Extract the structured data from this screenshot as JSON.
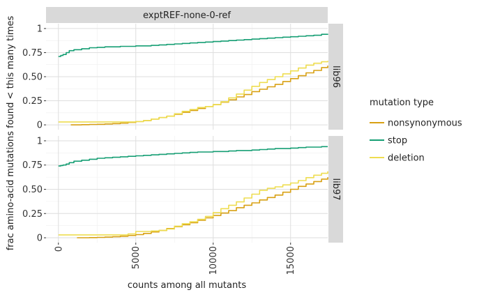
{
  "chart_data": {
    "type": "line",
    "facet_column_label": "exptREF-none-0-ref",
    "xlabel": "counts among all mutants",
    "ylabel": "frac amino-acid mutations found < this many times",
    "xlim": [
      -800,
      17400
    ],
    "ylim": [
      -0.05,
      1.05
    ],
    "x_ticks": [
      0,
      5000,
      10000,
      15000
    ],
    "x_tick_labels": [
      "0",
      "5000",
      "10000",
      "15000"
    ],
    "y_ticks": [
      0,
      0.25,
      0.5,
      0.75,
      1
    ],
    "y_tick_labels": [
      "0",
      "0.25",
      "0.50",
      "0.75",
      "1"
    ],
    "grid": true,
    "legend": {
      "title": "mutation type",
      "placement": "right",
      "entries": [
        "nonsynonymous",
        "stop",
        "deletion"
      ]
    },
    "colors": {
      "nonsynonymous": "#D8A013",
      "stop": "#159E73",
      "deletion": "#EEDD50",
      "strip_bg": "#D9D9D9",
      "grid": "#DEDEDE"
    },
    "panels": [
      {
        "row_label": "lib96",
        "series": [
          {
            "name": "stop",
            "x": [
              0,
              150,
              300,
              500,
              700,
              1000,
              1500,
              2000,
              2500,
              3000,
              3500,
              4000,
              4500,
              5000,
              5500,
              6000,
              6500,
              7000,
              7500,
              8000,
              8500,
              9000,
              9500,
              10000,
              10500,
              11000,
              11500,
              12000,
              12500,
              13000,
              13500,
              14000,
              14500,
              15000,
              15500,
              16000,
              16500,
              17000,
              17400
            ],
            "y": [
              0.71,
              0.72,
              0.73,
              0.75,
              0.77,
              0.78,
              0.79,
              0.8,
              0.805,
              0.81,
              0.81,
              0.815,
              0.815,
              0.82,
              0.82,
              0.825,
              0.83,
              0.835,
              0.84,
              0.845,
              0.85,
              0.855,
              0.86,
              0.865,
              0.87,
              0.875,
              0.88,
              0.885,
              0.89,
              0.895,
              0.9,
              0.905,
              0.91,
              0.915,
              0.92,
              0.925,
              0.93,
              0.94,
              0.945
            ]
          },
          {
            "name": "nonsynonymous",
            "x": [
              800,
              1500,
              2000,
              2500,
              3000,
              3500,
              4000,
              4500,
              5000,
              5500,
              6000,
              6500,
              7000,
              7500,
              8000,
              8500,
              9000,
              9500,
              10000,
              10500,
              11000,
              11500,
              12000,
              12500,
              13000,
              13500,
              14000,
              14500,
              15000,
              15500,
              16000,
              16500,
              17000,
              17400
            ],
            "y": [
              0.0,
              0.002,
              0.004,
              0.006,
              0.009,
              0.013,
              0.018,
              0.025,
              0.035,
              0.045,
              0.06,
              0.075,
              0.09,
              0.11,
              0.13,
              0.15,
              0.17,
              0.19,
              0.21,
              0.235,
              0.26,
              0.29,
              0.315,
              0.345,
              0.37,
              0.395,
              0.42,
              0.45,
              0.48,
              0.51,
              0.54,
              0.565,
              0.595,
              0.615
            ]
          },
          {
            "name": "deletion",
            "x": [
              0,
              1000,
              2000,
              3000,
              4000,
              4500,
              5000,
              5500,
              6000,
              6500,
              7000,
              7500,
              8000,
              8500,
              9000,
              9500,
              10000,
              10500,
              11000,
              11500,
              12000,
              12500,
              13000,
              13500,
              14000,
              14500,
              15000,
              15500,
              16000,
              16500,
              17000,
              17400
            ],
            "y": [
              0.03,
              0.03,
              0.03,
              0.03,
              0.03,
              0.03,
              0.035,
              0.045,
              0.06,
              0.075,
              0.09,
              0.115,
              0.14,
              0.16,
              0.18,
              0.19,
              0.21,
              0.24,
              0.28,
              0.32,
              0.36,
              0.4,
              0.44,
              0.47,
              0.5,
              0.53,
              0.56,
              0.59,
              0.62,
              0.64,
              0.655,
              0.665
            ]
          }
        ]
      },
      {
        "row_label": "lib97",
        "series": [
          {
            "name": "stop",
            "x": [
              0,
              150,
              300,
              500,
              700,
              1000,
              1500,
              2000,
              2500,
              3000,
              3500,
              4000,
              4500,
              5000,
              5500,
              6000,
              6500,
              7000,
              7500,
              8000,
              8500,
              9000,
              9500,
              10000,
              10500,
              11000,
              11500,
              12000,
              12500,
              13000,
              13500,
              14000,
              14500,
              15000,
              15500,
              16000,
              16500,
              17000,
              17400
            ],
            "y": [
              0.74,
              0.745,
              0.75,
              0.76,
              0.775,
              0.79,
              0.8,
              0.81,
              0.82,
              0.825,
              0.83,
              0.835,
              0.84,
              0.845,
              0.85,
              0.855,
              0.86,
              0.865,
              0.87,
              0.875,
              0.88,
              0.885,
              0.885,
              0.89,
              0.89,
              0.895,
              0.9,
              0.9,
              0.905,
              0.91,
              0.915,
              0.92,
              0.92,
              0.925,
              0.93,
              0.935,
              0.935,
              0.94,
              0.94
            ]
          },
          {
            "name": "nonsynonymous",
            "x": [
              1200,
              2000,
              2500,
              3000,
              3500,
              4000,
              4500,
              5000,
              5500,
              6000,
              6500,
              7000,
              7500,
              8000,
              8500,
              9000,
              9500,
              10000,
              10500,
              11000,
              11500,
              12000,
              12500,
              13000,
              13500,
              14000,
              14500,
              15000,
              15500,
              16000,
              16500,
              17000,
              17400
            ],
            "y": [
              0.0,
              0.002,
              0.004,
              0.007,
              0.011,
              0.016,
              0.024,
              0.033,
              0.045,
              0.06,
              0.075,
              0.095,
              0.115,
              0.135,
              0.155,
              0.18,
              0.205,
              0.23,
              0.255,
              0.28,
              0.31,
              0.335,
              0.36,
              0.39,
              0.415,
              0.44,
              0.47,
              0.5,
              0.53,
              0.555,
              0.58,
              0.605,
              0.625
            ]
          },
          {
            "name": "deletion",
            "x": [
              0,
              1000,
              2000,
              3000,
              4000,
              4500,
              5000,
              5500,
              6000,
              6500,
              7000,
              7500,
              8000,
              8500,
              9000,
              9500,
              10000,
              10500,
              11000,
              11500,
              12000,
              12500,
              13000,
              13500,
              14000,
              14500,
              15000,
              15500,
              16000,
              16500,
              17000,
              17400
            ],
            "y": [
              0.03,
              0.03,
              0.03,
              0.03,
              0.03,
              0.04,
              0.065,
              0.065,
              0.07,
              0.075,
              0.09,
              0.12,
              0.145,
              0.165,
              0.19,
              0.22,
              0.26,
              0.3,
              0.335,
              0.37,
              0.41,
              0.45,
              0.49,
              0.51,
              0.525,
              0.545,
              0.565,
              0.59,
              0.62,
              0.645,
              0.665,
              0.685
            ]
          }
        ]
      }
    ]
  }
}
